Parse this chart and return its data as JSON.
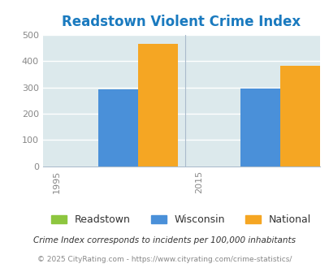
{
  "title": "Readstown Violent Crime Index",
  "title_color": "#1a7abf",
  "years": [
    "1995",
    "2015"
  ],
  "series": {
    "Readstown": [
      0,
      0
    ],
    "Wisconsin": [
      293,
      296
    ],
    "National": [
      467,
      381
    ]
  },
  "colors": {
    "Readstown": "#8dc63f",
    "Wisconsin": "#4a90d9",
    "National": "#f5a623"
  },
  "ylim": [
    0,
    500
  ],
  "yticks": [
    0,
    100,
    200,
    300,
    400,
    500
  ],
  "plot_bg_color": "#dce9ec",
  "fig_bg_color": "#ffffff",
  "footer_line1": "Crime Index corresponds to incidents per 100,000 inhabitants",
  "footer_line2": "© 2025 CityRating.com - https://www.cityrating.com/crime-statistics/",
  "bar_width": 0.28,
  "grid_color": "#ffffff",
  "tick_color": "#888888",
  "legend_labels": [
    "Readstown",
    "Wisconsin",
    "National"
  ],
  "divider_color": "#aabbcc"
}
